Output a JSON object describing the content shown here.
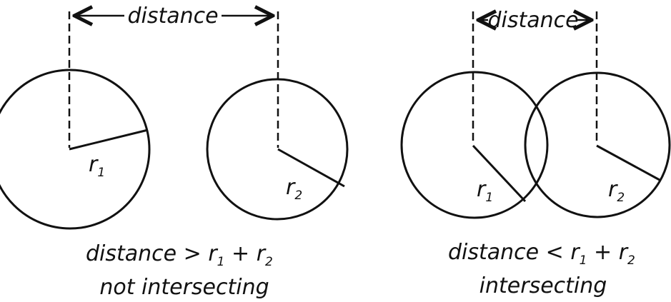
{
  "left_panel": {
    "distance_label": "distance",
    "r1_label": "r",
    "r1_sub": "1",
    "r2_label": "r",
    "r2_sub": "2",
    "caption_prefix": "distance > r",
    "caption_sub1": "1",
    "caption_plus": " + r",
    "caption_sub2": "2",
    "caption_line2": "not intersecting"
  },
  "right_panel": {
    "distance_label": "distance",
    "r1_label": "r",
    "r1_sub": "1",
    "r2_label": "r",
    "r2_sub": "2",
    "caption_prefix": "distance < r",
    "caption_sub1": "1",
    "caption_plus": " + r",
    "caption_sub2": "2",
    "caption_line2": "intersecting"
  },
  "colors": {
    "stroke": "#111111",
    "background": "#ffffff"
  }
}
